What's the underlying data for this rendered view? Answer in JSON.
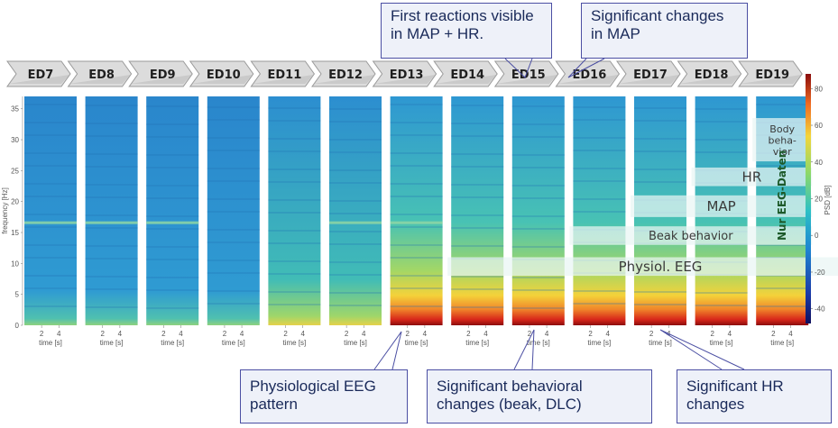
{
  "chart_data": {
    "type": "heatmap",
    "panels": [
      "ED7",
      "ED8",
      "ED9",
      "ED10",
      "ED11",
      "ED12",
      "ED13",
      "ED14",
      "ED15",
      "ED16",
      "ED17",
      "ED18",
      "ED19"
    ],
    "ylabel": "frequency [Hz]",
    "xlabel": "time [s]",
    "x_ticks": [
      "2",
      "4"
    ],
    "y_ticks": [
      "0",
      "5",
      "10",
      "15",
      "20",
      "25",
      "30",
      "35"
    ],
    "ylim": [
      0,
      37
    ],
    "colorbar": {
      "label": "PSD [dB]",
      "ticks": [
        "80",
        "60",
        "40",
        "20",
        "0",
        "-20",
        "-40"
      ],
      "range": [
        -48,
        88
      ]
    },
    "bands": [
      {
        "label": "Physiol. EEG",
        "from_panel": 7,
        "to_panel": 13,
        "freq_range": [
          8,
          11
        ]
      },
      {
        "label": "Beak behavior",
        "from_panel": 9,
        "to_panel": 12,
        "freq_range": [
          13,
          16
        ]
      },
      {
        "label": "MAP",
        "from_panel": 10,
        "to_panel": 12,
        "freq_range": [
          17.5,
          21
        ]
      },
      {
        "label": "HR",
        "from_panel": 11,
        "to_panel": 12,
        "freq_range": [
          22.5,
          25.5
        ]
      },
      {
        "label": "Body\nbeha-\nvior",
        "from_panel": 12,
        "to_panel": 12,
        "freq_range": [
          26.5,
          33.5
        ]
      }
    ],
    "side_label": "Nur EEG-Daten",
    "callouts": [
      {
        "text": "First reactions visible in MAP + HR.",
        "points_to": "ED15"
      },
      {
        "text": "Significant changes in MAP",
        "points_to": "ED16"
      },
      {
        "text": "Physiological EEG pattern",
        "points_to": "ED13"
      },
      {
        "text": "Significant behavioral changes (beak, DLC)",
        "points_to": "ED15"
      },
      {
        "text": "Significant HR changes",
        "points_to": "ED17"
      }
    ]
  },
  "callouts": {
    "first_reactions": "First reactions visible in MAP + HR.",
    "significant_map": "Significant changes in MAP",
    "physiological_eeg": "Physiological EEG pattern",
    "behavioral": "Significant behavioral changes (beak, DLC)",
    "hr_changes": "Significant HR changes"
  }
}
